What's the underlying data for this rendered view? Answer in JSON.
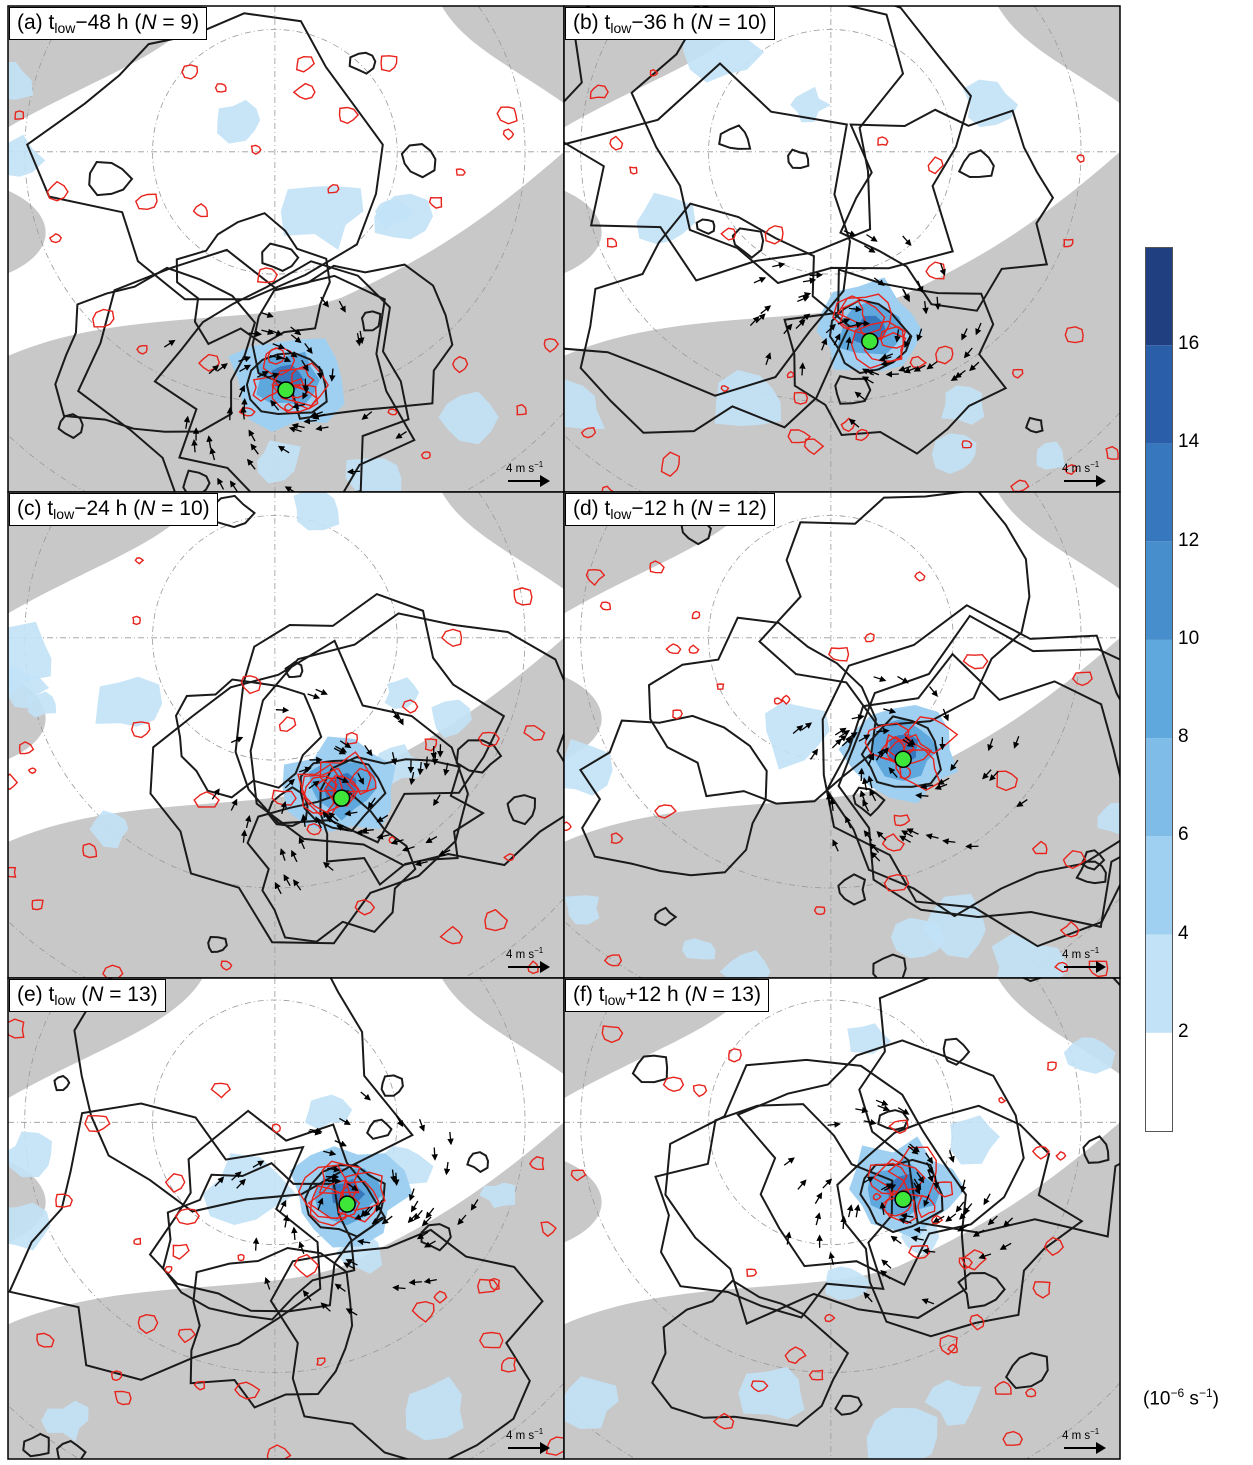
{
  "panels": [
    {
      "id": "a",
      "letter": "(a)",
      "time_sub": "low",
      "offset": "−48 h",
      "n": "9",
      "vortex": [
        0.5,
        0.79
      ]
    },
    {
      "id": "b",
      "letter": "(b)",
      "time_sub": "low",
      "offset": "−36 h",
      "n": "10",
      "vortex": [
        0.55,
        0.69
      ]
    },
    {
      "id": "c",
      "letter": "(c)",
      "time_sub": "low",
      "offset": "−24 h",
      "n": "10",
      "vortex": [
        0.6,
        0.63
      ]
    },
    {
      "id": "d",
      "letter": "(d)",
      "time_sub": "low",
      "offset": "−12 h",
      "n": "12",
      "vortex": [
        0.61,
        0.55
      ]
    },
    {
      "id": "e",
      "letter": "(e)",
      "time_sub": "low",
      "offset": "",
      "n": "13",
      "vortex": [
        0.61,
        0.47
      ]
    },
    {
      "id": "f",
      "letter": "(f)",
      "time_sub": "low",
      "offset": "+12 h",
      "n": "13",
      "vortex": [
        0.61,
        0.46
      ]
    }
  ],
  "label_template": {
    "t": "t",
    "n_symbol": "N",
    "equals": " = "
  },
  "scale_ref": {
    "value": "4 m s",
    "exponent": "−1"
  },
  "colorbar": {
    "levels": [
      0,
      2,
      4,
      6,
      8,
      10,
      12,
      14,
      16,
      18
    ],
    "tick_labels": [
      "2",
      "4",
      "6",
      "8",
      "10",
      "12",
      "14",
      "16"
    ],
    "colors": [
      "#ffffff",
      "#c2e2f7",
      "#9fd0f1",
      "#7fbde8",
      "#5ea8dd",
      "#468fcc",
      "#3677be",
      "#2a5ea8",
      "#203f80"
    ],
    "unit_base": "(10",
    "unit_exp1": "−6",
    "unit_mid": " s",
    "unit_exp2": "−1",
    "unit_close": ")"
  },
  "colors": {
    "land": "#c8c8c8",
    "ocean": "#ffffff",
    "contour_black": "#1a1a1a",
    "contour_red": "#e8231c",
    "vortex_marker": "#3ee63a",
    "shading": "#9fd0f1",
    "wind_arrow": "#000000"
  }
}
